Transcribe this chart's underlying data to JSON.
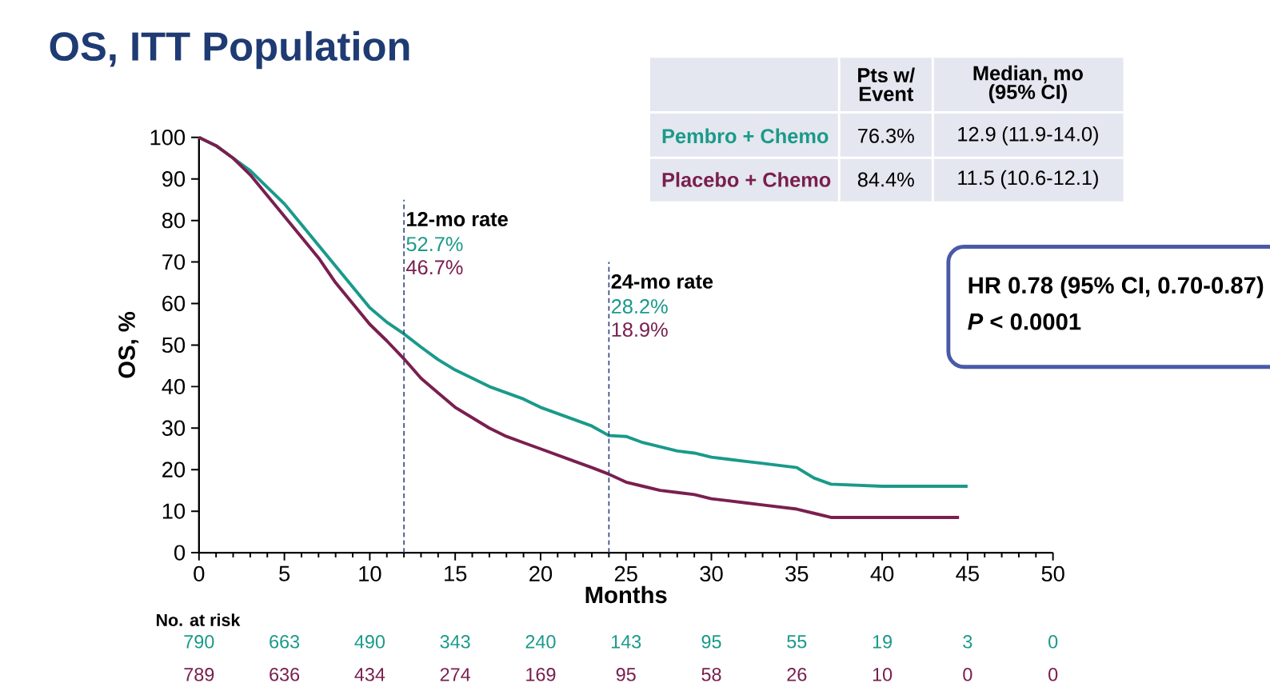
{
  "chart_data": {
    "type": "line",
    "title": "OS, ITT Population",
    "xlabel": "Months",
    "ylabel": "OS, %",
    "xlim": [
      0,
      50
    ],
    "ylim": [
      0,
      100
    ],
    "xticks": [
      0,
      5,
      10,
      15,
      20,
      25,
      30,
      35,
      40,
      45,
      50
    ],
    "yticks": [
      0,
      10,
      20,
      30,
      40,
      50,
      60,
      70,
      80,
      90,
      100
    ],
    "grid": false,
    "marker": "none",
    "line_style": "solid",
    "series": [
      {
        "name": "Pembro + Chemo",
        "color": "#1a9a8a",
        "x": [
          0,
          1,
          2,
          3,
          4,
          5,
          6,
          7,
          8,
          9,
          10,
          11,
          12,
          13,
          14,
          15,
          16,
          17,
          18,
          19,
          20,
          21,
          22,
          23,
          24,
          25,
          26,
          27,
          28,
          29,
          30,
          31,
          32,
          33,
          34,
          35,
          36,
          37,
          40,
          45
        ],
        "values": [
          100,
          98,
          95,
          92,
          88,
          84,
          79,
          74,
          69,
          64,
          59,
          55.5,
          52.7,
          49.5,
          46.5,
          44,
          42,
          40,
          38.5,
          37,
          35,
          33.5,
          32,
          30.5,
          28.2,
          28,
          26.5,
          25.5,
          24.5,
          24,
          23,
          22.5,
          22,
          21.5,
          21,
          20.5,
          18,
          16.5,
          16,
          16
        ]
      },
      {
        "name": "Placebo + Chemo",
        "color": "#7a1f4f",
        "x": [
          0,
          1,
          2,
          3,
          4,
          5,
          6,
          7,
          8,
          9,
          10,
          11,
          12,
          13,
          14,
          15,
          16,
          17,
          18,
          19,
          20,
          21,
          22,
          23,
          24,
          25,
          26,
          27,
          28,
          29,
          30,
          31,
          32,
          33,
          34,
          35,
          36,
          37,
          40,
          44.5
        ],
        "values": [
          100,
          98,
          95,
          91,
          86,
          81,
          76,
          71,
          65,
          60,
          55,
          51,
          46.7,
          42,
          38.5,
          35,
          32.5,
          30,
          28,
          26.5,
          25,
          23.5,
          22,
          20.5,
          18.9,
          17,
          16,
          15,
          14.5,
          14,
          13,
          12.5,
          12,
          11.5,
          11,
          10.5,
          9.5,
          8.5,
          8.5,
          8.5
        ]
      }
    ],
    "ref_lines": [
      {
        "axis": "x",
        "value": 12,
        "label": "12-mo rate",
        "color": "#2b3f7a",
        "line_style": "dashed"
      },
      {
        "axis": "x",
        "value": 24,
        "label": "24-mo rate",
        "color": "#2b3f7a",
        "line_style": "dashed"
      }
    ],
    "annotations": [
      "Pts w/ Event",
      "Median, mo (95% CI)",
      "76.3%",
      "12.9 (11.9-14.0)",
      "84.4%",
      "11.5 (10.6-12.1)",
      "HR 0.78 (95% CI, 0.70-0.87)",
      "*P* < 0.0001",
      "52.7%",
      "46.7%",
      "28.2%",
      "18.9%",
      "No. at risk",
      "790",
      "663",
      "490",
      "343",
      "240",
      "143",
      "95",
      "55",
      "19",
      "3",
      "0",
      "789",
      "636",
      "434",
      "274",
      "169",
      "95",
      "58",
      "26",
      "10",
      "0",
      "0"
    ]
  }
}
